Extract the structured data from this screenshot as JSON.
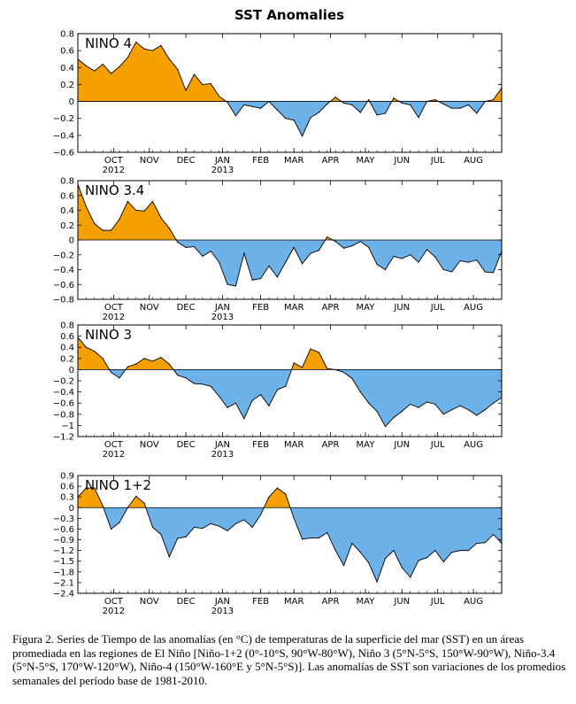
{
  "title": "SST Anomalies",
  "caption": "Figura 2. Series de Tiempo de las anomalías (en °C) de temperaturas de la superficie del mar (SST) en un áreas promediada en las regiones de El Niño [Niño-1+2 (0°-10°S, 90°W-80°W), Niño 3 (5°N-5°S, 150°W-90°W), Niño-3.4 (5°N-5°S, 170°W-120°W), Niño-4 (150°W-160°E y 5°N-5°S)]. Las anomalías de SST son variaciones de los promedios semanales del período base de 1981-2010.",
  "colors": {
    "positive": "#f5a000",
    "negative": "#6cb1e8",
    "line": "#000000"
  },
  "chart_data": [
    {
      "type": "area",
      "label": "NINO 4",
      "ylim": [
        -0.6,
        0.8
      ],
      "yticks": [
        0.8,
        0.6,
        0.4,
        0.2,
        0,
        -0.2,
        -0.4,
        -0.6
      ],
      "ytick_labels": [
        "0.8",
        "0.6",
        "0.4",
        "0.2",
        "0",
        "−0.2",
        "−0.4",
        "−0.6"
      ],
      "x_months": [
        "OCT",
        "NOV",
        "DEC",
        "JAN",
        "FEB",
        "MAR",
        "APR",
        "MAY",
        "JUN",
        "JUL",
        "AUG"
      ],
      "x_years": [
        "2012",
        "2013"
      ],
      "weeks": [
        0,
        1,
        2,
        3,
        4,
        5,
        6,
        7,
        8,
        9,
        10,
        11,
        12,
        13,
        14,
        15,
        16,
        17,
        18,
        19,
        20,
        21,
        22,
        23,
        24,
        25,
        26,
        27,
        28,
        29,
        30,
        31,
        32,
        33,
        34,
        35,
        36,
        37,
        38,
        39,
        40,
        41,
        42,
        43,
        44,
        45,
        46,
        47,
        48,
        49,
        50,
        51
      ],
      "values": [
        0.5,
        0.42,
        0.36,
        0.44,
        0.33,
        0.41,
        0.52,
        0.7,
        0.62,
        0.6,
        0.66,
        0.5,
        0.38,
        0.13,
        0.32,
        0.2,
        0.21,
        0.06,
        -0.01,
        -0.17,
        -0.04,
        -0.06,
        -0.08,
        0.0,
        -0.1,
        -0.2,
        -0.22,
        -0.41,
        -0.19,
        -0.13,
        -0.03,
        0.05,
        -0.02,
        -0.04,
        -0.13,
        0.02,
        -0.16,
        -0.14,
        0.04,
        -0.02,
        -0.04,
        -0.19,
        0.0,
        0.02,
        -0.03,
        -0.08,
        -0.08,
        -0.04,
        -0.14,
        0.0,
        0.02,
        0.16
      ]
    },
    {
      "type": "area",
      "label": "NINO 3.4",
      "ylim": [
        -0.8,
        0.8
      ],
      "yticks": [
        0.8,
        0.6,
        0.4,
        0.2,
        0,
        -0.2,
        -0.4,
        -0.6,
        -0.8
      ],
      "ytick_labels": [
        "0.8",
        "0.6",
        "0.4",
        "0.2",
        "0",
        "−0.2",
        "−0.4",
        "−0.6",
        "−0.8"
      ],
      "x_months": [
        "OCT",
        "NOV",
        "DEC",
        "JAN",
        "FEB",
        "MAR",
        "APR",
        "MAY",
        "JUN",
        "JUL",
        "AUG"
      ],
      "x_years": [
        "2012",
        "2013"
      ],
      "weeks": [
        0,
        1,
        2,
        3,
        4,
        5,
        6,
        7,
        8,
        9,
        10,
        11,
        12,
        13,
        14,
        15,
        16,
        17,
        18,
        19,
        20,
        21,
        22,
        23,
        24,
        25,
        26,
        27,
        28,
        29,
        30,
        31,
        32,
        33,
        34,
        35,
        36,
        37,
        38,
        39,
        40,
        41,
        42,
        43,
        44,
        45,
        46,
        47,
        48,
        49,
        50,
        51
      ],
      "values": [
        0.75,
        0.45,
        0.22,
        0.13,
        0.13,
        0.28,
        0.52,
        0.4,
        0.39,
        0.52,
        0.3,
        0.16,
        -0.03,
        -0.1,
        -0.09,
        -0.22,
        -0.15,
        -0.3,
        -0.6,
        -0.62,
        -0.18,
        -0.54,
        -0.52,
        -0.35,
        -0.5,
        -0.3,
        -0.1,
        -0.32,
        -0.18,
        -0.14,
        0.04,
        -0.02,
        -0.11,
        -0.08,
        -0.02,
        -0.1,
        -0.33,
        -0.4,
        -0.22,
        -0.25,
        -0.2,
        -0.3,
        -0.13,
        -0.23,
        -0.4,
        -0.43,
        -0.28,
        -0.3,
        -0.27,
        -0.43,
        -0.44,
        -0.15
      ]
    },
    {
      "type": "area",
      "label": "NINO 3",
      "ylim": [
        -1.2,
        0.8
      ],
      "yticks": [
        0.8,
        0.6,
        0.4,
        0.2,
        0,
        -0.2,
        -0.4,
        -0.6,
        -0.8,
        -1,
        -1.2
      ],
      "ytick_labels": [
        "0.8",
        "0.6",
        "0.4",
        "0.2",
        "0",
        "−0.2",
        "−0.4",
        "−0.6",
        "−0.8",
        "−1",
        "−1.2"
      ],
      "x_months": [
        "OCT",
        "NOV",
        "DEC",
        "JAN",
        "FEB",
        "MAR",
        "APR",
        "MAY",
        "JUN",
        "JUL",
        "AUG"
      ],
      "x_years": [
        "2012",
        "2013"
      ],
      "weeks": [
        0,
        1,
        2,
        3,
        4,
        5,
        6,
        7,
        8,
        9,
        10,
        11,
        12,
        13,
        14,
        15,
        16,
        17,
        18,
        19,
        20,
        21,
        22,
        23,
        24,
        25,
        26,
        27,
        28,
        29,
        30,
        31,
        32,
        33,
        34,
        35,
        36,
        37,
        38,
        39,
        40,
        41,
        42,
        43,
        44,
        45,
        46,
        47,
        48,
        49,
        50,
        51
      ],
      "values": [
        0.58,
        0.4,
        0.33,
        0.2,
        -0.05,
        -0.15,
        0.05,
        0.1,
        0.2,
        0.15,
        0.22,
        0.1,
        -0.1,
        -0.15,
        -0.25,
        -0.26,
        -0.3,
        -0.48,
        -0.68,
        -0.6,
        -0.88,
        -0.55,
        -0.45,
        -0.65,
        -0.36,
        -0.3,
        0.12,
        0.04,
        0.37,
        0.31,
        0.02,
        0.0,
        -0.05,
        -0.16,
        -0.4,
        -0.6,
        -0.75,
        -1.02,
        -0.86,
        -0.75,
        -0.62,
        -0.68,
        -0.58,
        -0.62,
        -0.8,
        -0.72,
        -0.65,
        -0.72,
        -0.82,
        -0.72,
        -0.6,
        -0.5
      ]
    },
    {
      "type": "area",
      "label": "NINO 1+2",
      "ylim": [
        -2.4,
        0.9
      ],
      "yticks": [
        0.9,
        0.6,
        0.3,
        0,
        -0.3,
        -0.6,
        -0.9,
        -1.2,
        -1.5,
        -1.8,
        -2.1,
        -2.4
      ],
      "ytick_labels": [
        "0.9",
        "0.6",
        "0.3",
        "0",
        "−0.3",
        "−0.6",
        "−0.9",
        "−1.2",
        "−1.5",
        "−1.8",
        "−2.1",
        "−2.4"
      ],
      "x_months": [
        "OCT",
        "NOV",
        "DEC",
        "JAN",
        "FEB",
        "MAR",
        "APR",
        "MAY",
        "JUN",
        "JUL",
        "AUG"
      ],
      "x_years": [
        "2012",
        "2013"
      ],
      "weeks": [
        0,
        1,
        2,
        3,
        4,
        5,
        6,
        7,
        8,
        9,
        10,
        11,
        12,
        13,
        14,
        15,
        16,
        17,
        18,
        19,
        20,
        21,
        22,
        23,
        24,
        25,
        26,
        27,
        28,
        29,
        30,
        31,
        32,
        33,
        34,
        35,
        36,
        37,
        38,
        39,
        40,
        41,
        42,
        43,
        44,
        45,
        46,
        47,
        48,
        49,
        50,
        51
      ],
      "values": [
        0.3,
        0.55,
        0.55,
        0.05,
        -0.6,
        -0.42,
        0.0,
        0.32,
        0.12,
        -0.55,
        -0.75,
        -1.38,
        -0.86,
        -0.82,
        -0.55,
        -0.58,
        -0.45,
        -0.52,
        -0.65,
        -0.45,
        -0.34,
        -0.55,
        -0.2,
        0.3,
        0.55,
        0.38,
        -0.3,
        -0.88,
        -0.85,
        -0.85,
        -0.7,
        -1.2,
        -1.62,
        -1.0,
        -1.25,
        -1.55,
        -2.08,
        -1.42,
        -1.2,
        -1.68,
        -1.95,
        -1.48,
        -1.4,
        -1.2,
        -1.52,
        -1.25,
        -1.2,
        -1.2,
        -1.0,
        -0.98,
        -0.75,
        -1.0
      ]
    }
  ]
}
